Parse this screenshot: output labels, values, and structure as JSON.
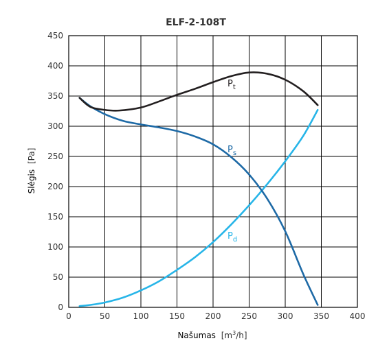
{
  "chart_data": {
    "type": "line",
    "title": "ELF-2-108T",
    "xlabel": {
      "name": "Našumas",
      "unit_open": "[m",
      "unit_sup": "3",
      "unit_close": "/h]"
    },
    "ylabel": {
      "name": "Slėgis",
      "unit": "[Pa]"
    },
    "xlim": [
      0,
      400
    ],
    "ylim": [
      0,
      450
    ],
    "xticks": [
      "0",
      "50",
      "100",
      "150",
      "200",
      "250",
      "300",
      "350",
      "400"
    ],
    "yticks": [
      "0",
      "50",
      "100",
      "150",
      "200",
      "250",
      "300",
      "350",
      "400",
      "450"
    ],
    "grid": true,
    "series": [
      {
        "name": "Pt",
        "label_main": "P",
        "label_sub": "t",
        "color": "#231f20",
        "points": [
          [
            15,
            347
          ],
          [
            30,
            332
          ],
          [
            50,
            327
          ],
          [
            70,
            326
          ],
          [
            100,
            331
          ],
          [
            125,
            341
          ],
          [
            150,
            352
          ],
          [
            175,
            362
          ],
          [
            200,
            373
          ],
          [
            225,
            383
          ],
          [
            250,
            389
          ],
          [
            275,
            387
          ],
          [
            300,
            377
          ],
          [
            325,
            358
          ],
          [
            345,
            335
          ]
        ]
      },
      {
        "name": "Ps",
        "label_main": "P",
        "label_sub": "s",
        "color": "#1e6aa6",
        "points": [
          [
            15,
            347
          ],
          [
            30,
            333
          ],
          [
            50,
            320
          ],
          [
            75,
            309
          ],
          [
            100,
            303
          ],
          [
            125,
            298
          ],
          [
            150,
            292
          ],
          [
            175,
            283
          ],
          [
            200,
            270
          ],
          [
            225,
            249
          ],
          [
            250,
            220
          ],
          [
            275,
            180
          ],
          [
            300,
            126
          ],
          [
            325,
            55
          ],
          [
            345,
            4
          ]
        ]
      },
      {
        "name": "Pd",
        "label_main": "P",
        "label_sub": "d",
        "color": "#27b5e8",
        "points": [
          [
            15,
            2
          ],
          [
            30,
            4
          ],
          [
            50,
            8
          ],
          [
            75,
            16
          ],
          [
            100,
            28
          ],
          [
            125,
            43
          ],
          [
            150,
            62
          ],
          [
            175,
            83
          ],
          [
            200,
            108
          ],
          [
            225,
            137
          ],
          [
            250,
            169
          ],
          [
            275,
            204
          ],
          [
            300,
            242
          ],
          [
            325,
            284
          ],
          [
            345,
            327
          ]
        ]
      }
    ]
  }
}
